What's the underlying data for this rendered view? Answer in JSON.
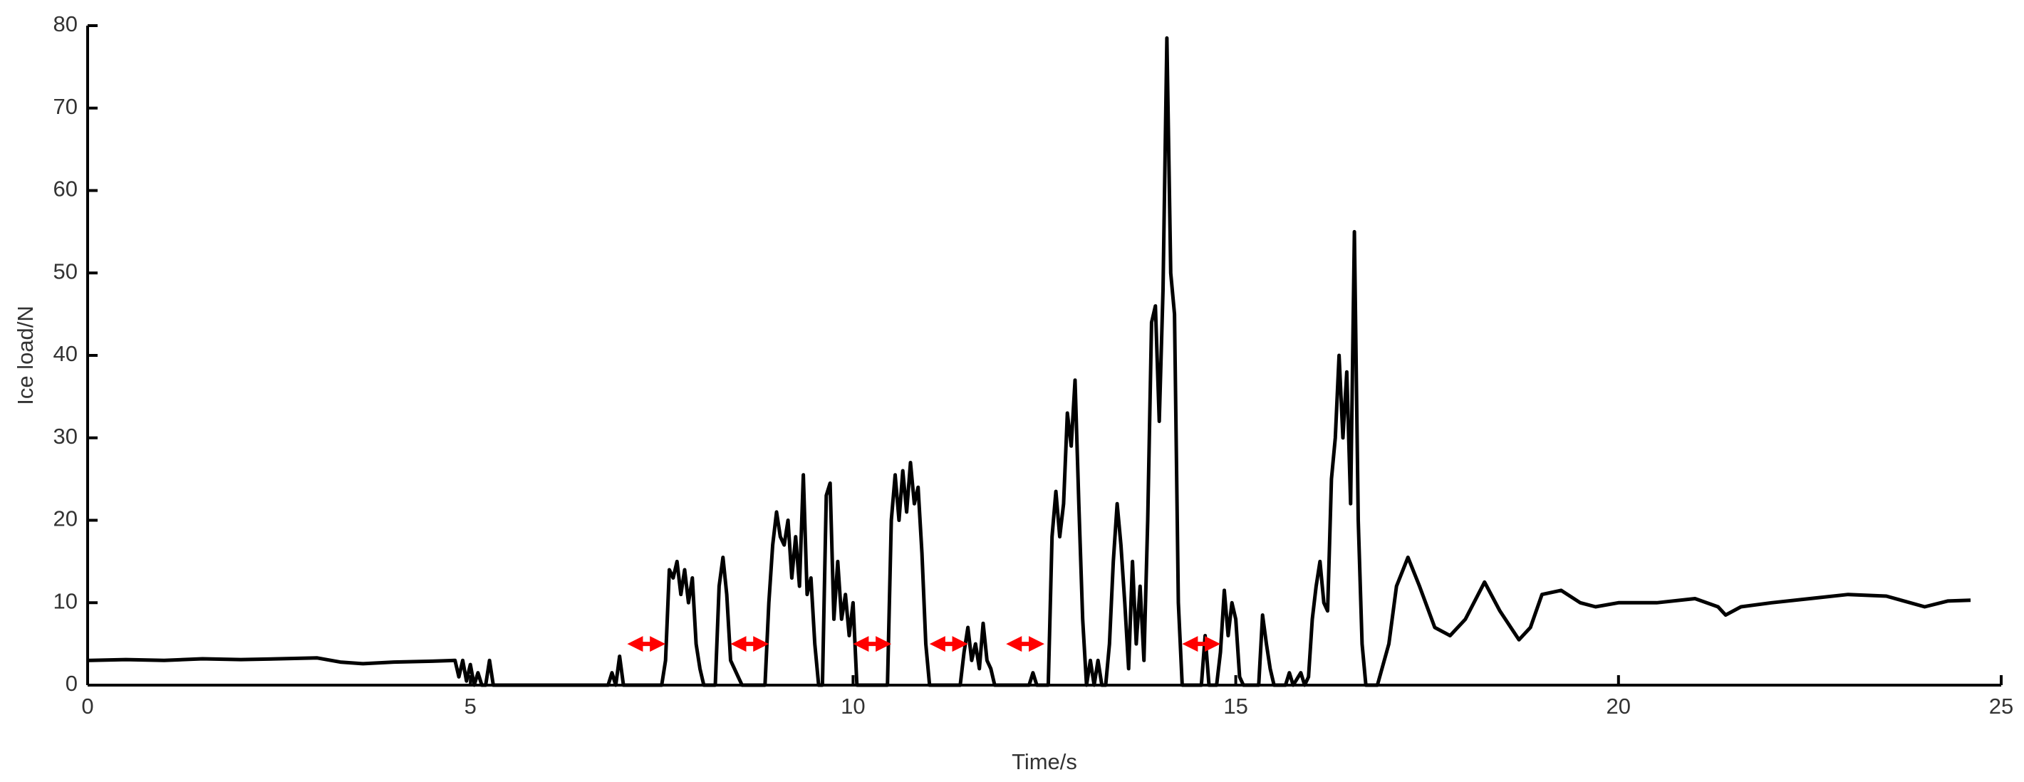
{
  "chart_data": {
    "type": "line",
    "xlabel": "Time/s",
    "ylabel": "Ice load/N",
    "xlim": [
      0,
      25
    ],
    "ylim": [
      0,
      80
    ],
    "xticks": [
      0,
      5,
      10,
      15,
      20,
      25
    ],
    "yticks": [
      0,
      10,
      20,
      30,
      40,
      50,
      60,
      70,
      80
    ],
    "series": [
      {
        "color": "#000000",
        "x": [
          0,
          0.5,
          1,
          1.5,
          2,
          2.5,
          3,
          3.3,
          3.6,
          4,
          4.5,
          4.8,
          4.85,
          4.9,
          4.95,
          5.0,
          5.05,
          5.1,
          5.15,
          5.2,
          5.25,
          5.3,
          6.8,
          6.85,
          6.9,
          6.95,
          7.0,
          7.5,
          7.55,
          7.6,
          7.65,
          7.7,
          7.75,
          7.8,
          7.85,
          7.9,
          7.95,
          8.0,
          8.05,
          8.2,
          8.25,
          8.3,
          8.35,
          8.4,
          8.45,
          8.5,
          8.55,
          8.85,
          8.9,
          8.95,
          9.0,
          9.05,
          9.1,
          9.15,
          9.2,
          9.25,
          9.3,
          9.35,
          9.4,
          9.45,
          9.5,
          9.55,
          9.6,
          9.65,
          9.7,
          9.75,
          9.8,
          9.85,
          9.9,
          9.95,
          10.0,
          10.05,
          10.45,
          10.5,
          10.55,
          10.6,
          10.65,
          10.7,
          10.75,
          10.8,
          10.85,
          10.9,
          10.95,
          11.0,
          11.4,
          11.45,
          11.5,
          11.55,
          11.6,
          11.65,
          11.7,
          11.75,
          11.8,
          11.85,
          12.3,
          12.35,
          12.4,
          12.55,
          12.6,
          12.65,
          12.7,
          12.75,
          12.8,
          12.85,
          12.9,
          12.95,
          13.0,
          13.05,
          13.1,
          13.15,
          13.2,
          13.25,
          13.3,
          13.35,
          13.4,
          13.45,
          13.5,
          13.55,
          13.6,
          13.65,
          13.7,
          13.75,
          13.8,
          13.85,
          13.9,
          13.95,
          14.0,
          14.05,
          14.1,
          14.15,
          14.2,
          14.25,
          14.3,
          14.55,
          14.6,
          14.65,
          14.75,
          14.8,
          14.85,
          14.9,
          14.95,
          15.0,
          15.05,
          15.1,
          15.3,
          15.35,
          15.4,
          15.45,
          15.5,
          15.65,
          15.7,
          15.75,
          15.85,
          15.9,
          15.95,
          16.0,
          16.05,
          16.1,
          16.15,
          16.2,
          16.25,
          16.3,
          16.35,
          16.4,
          16.45,
          16.5,
          16.55,
          16.6,
          16.65,
          16.7,
          16.85,
          17.0,
          17.1,
          17.25,
          17.4,
          17.6,
          17.8,
          18.0,
          18.25,
          18.45,
          18.7,
          18.85,
          19.0,
          19.25,
          19.5,
          19.7,
          20.0,
          20.5,
          21,
          21.3,
          21.4,
          21.6,
          22,
          22.5,
          23,
          23.5,
          24,
          24.3,
          24.6
        ],
        "values": [
          3,
          3.1,
          3,
          3.2,
          3.1,
          3.2,
          3.3,
          2.8,
          2.6,
          2.8,
          2.9,
          3,
          1,
          3,
          0.5,
          2.5,
          0,
          1.5,
          0,
          0,
          3,
          0,
          0,
          1.5,
          0,
          3.5,
          0,
          0,
          3,
          14,
          13,
          15,
          11,
          14,
          10,
          13,
          5,
          2,
          0,
          0,
          12,
          15.5,
          11,
          3,
          2,
          1,
          0,
          0,
          10,
          17,
          21,
          18,
          17,
          20,
          13,
          18,
          12,
          25.5,
          11,
          13,
          5,
          0,
          0,
          23,
          24.5,
          8,
          15,
          8,
          11,
          6,
          10,
          0,
          0,
          20,
          25.5,
          20,
          26,
          21,
          27,
          22,
          24,
          16,
          5,
          0,
          0,
          4,
          7,
          3,
          5,
          2,
          7.5,
          3,
          2,
          0,
          0,
          1.5,
          0,
          0,
          18,
          23.5,
          18,
          22,
          33,
          29,
          37,
          22,
          8,
          0,
          3,
          0,
          3,
          0,
          0,
          5,
          15,
          22,
          17,
          10,
          2,
          15,
          5,
          12,
          3,
          20,
          44,
          46,
          32,
          48,
          78.5,
          50,
          45,
          10,
          0,
          0,
          6,
          0,
          0,
          4,
          11.5,
          6,
          10,
          8,
          1,
          0,
          0,
          8.5,
          5,
          2,
          0,
          0,
          1.5,
          0,
          1.5,
          0,
          1,
          8,
          12,
          15,
          10,
          9,
          25,
          30,
          40,
          30,
          38,
          22,
          55,
          20,
          5,
          0,
          0,
          5,
          12,
          15.5,
          12,
          7,
          6,
          8,
          12.5,
          9,
          5.5,
          7,
          11,
          11.5,
          10,
          9.5,
          10,
          10,
          10.5,
          9.5,
          8.5,
          9.5,
          10,
          10.5,
          11,
          10.8,
          9.5,
          10.2,
          10.3
        ]
      }
    ],
    "interval_arrows": {
      "color": "#ff0000",
      "y": 5,
      "x": [
        [
          7.05,
          7.55
        ],
        [
          8.4,
          8.9
        ],
        [
          10.0,
          10.5
        ],
        [
          11.0,
          11.5
        ],
        [
          12.0,
          12.5
        ],
        [
          14.3,
          14.8
        ]
      ]
    }
  }
}
